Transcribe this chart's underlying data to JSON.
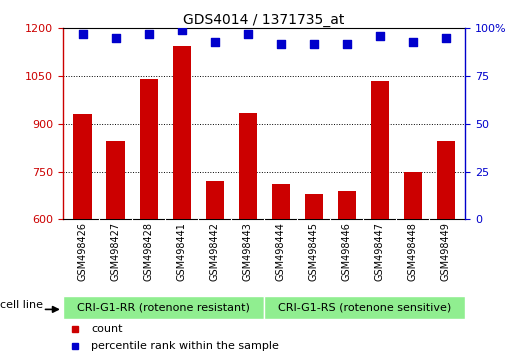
{
  "title": "GDS4014 / 1371735_at",
  "samples": [
    "GSM498426",
    "GSM498427",
    "GSM498428",
    "GSM498441",
    "GSM498442",
    "GSM498443",
    "GSM498444",
    "GSM498445",
    "GSM498446",
    "GSM498447",
    "GSM498448",
    "GSM498449"
  ],
  "counts": [
    930,
    845,
    1040,
    1145,
    720,
    935,
    710,
    680,
    690,
    1035,
    748,
    845
  ],
  "percentile_ranks": [
    97,
    95,
    97,
    99,
    93,
    97,
    92,
    92,
    92,
    96,
    93,
    95
  ],
  "group1_label": "CRI-G1-RR (rotenone resistant)",
  "group2_label": "CRI-G1-RS (rotenone sensitive)",
  "group1_count": 6,
  "group2_count": 6,
  "ylim_left": [
    600,
    1200
  ],
  "ylim_right": [
    0,
    100
  ],
  "yticks_left": [
    600,
    750,
    900,
    1050,
    1200
  ],
  "yticks_right": [
    0,
    25,
    50,
    75,
    100
  ],
  "bar_color": "#cc0000",
  "dot_color": "#0000cc",
  "group_bg": "#90ee90",
  "tick_area_bg": "#d3d3d3",
  "legend_count_label": "count",
  "legend_pct_label": "percentile rank within the sample",
  "cell_line_label": "cell line"
}
